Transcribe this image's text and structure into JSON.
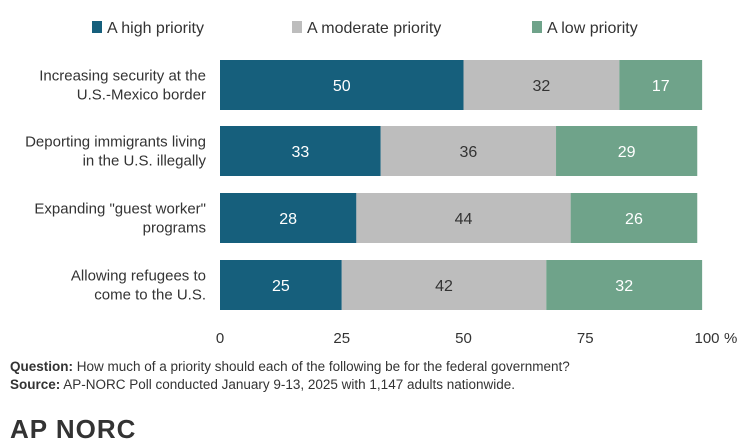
{
  "chart_data": {
    "type": "bar",
    "orientation": "horizontal",
    "stacked": true,
    "categories": [
      [
        "Increasing security at the",
        "U.S.-Mexico border"
      ],
      [
        "Deporting immigrants living",
        "in the U.S. illegally"
      ],
      [
        "Expanding \"guest worker\"",
        "programs"
      ],
      [
        "Allowing refugees to",
        "come to the U.S."
      ]
    ],
    "series": [
      {
        "name": "A high priority",
        "values": [
          50,
          33,
          28,
          25
        ],
        "color": "#165f7c",
        "label_color": "#ffffff"
      },
      {
        "name": "A moderate priority",
        "values": [
          32,
          36,
          44,
          42
        ],
        "color": "#bdbdbd",
        "label_color": "#333333"
      },
      {
        "name": "A low priority",
        "values": [
          17,
          29,
          26,
          32
        ],
        "color": "#6fa38a",
        "label_color": "#ffffff"
      }
    ],
    "xlim": [
      0,
      100
    ],
    "xticks": [
      "0",
      "25",
      "50",
      "75",
      "100"
    ],
    "x_unit": "%",
    "legend_position": "top",
    "grid": false
  },
  "footnote": {
    "question_label": "Question:",
    "question_text": " How much of a priority should each of the following be for the federal government?",
    "source_label": "Source:",
    "source_text": " AP-NORC Poll conducted January 9-13, 2025 with 1,147 adults nationwide."
  },
  "logo": {
    "text": "AP  NORC"
  }
}
